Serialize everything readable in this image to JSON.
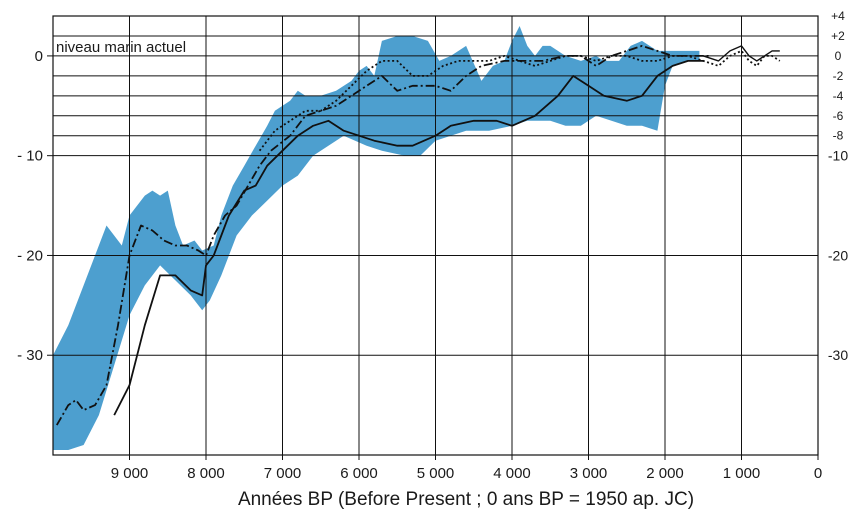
{
  "chart_data": {
    "type": "area",
    "xlabel": "Années BP (Before Present ; 0 ans BP = 1950 ap. JC)",
    "ylabel": "",
    "annotation": "niveau marin actuel",
    "x_reversed": true,
    "xlim": [
      10000,
      0
    ],
    "ylim": [
      -40,
      4
    ],
    "grid": true,
    "x_ticks": [
      {
        "value": 9000,
        "label": "9 000"
      },
      {
        "value": 8000,
        "label": "8 000"
      },
      {
        "value": 7000,
        "label": "7 000"
      },
      {
        "value": 6000,
        "label": "6 000"
      },
      {
        "value": 5000,
        "label": "5 000"
      },
      {
        "value": 4000,
        "label": "4 000"
      },
      {
        "value": 3000,
        "label": "3 000"
      },
      {
        "value": 2000,
        "label": "2 000"
      },
      {
        "value": 1000,
        "label": "1 000"
      },
      {
        "value": 0,
        "label": "0"
      }
    ],
    "y_ticks_left": [
      {
        "value": 0,
        "label": "0"
      },
      {
        "value": -10,
        "label": "- 10"
      },
      {
        "value": -20,
        "label": "- 20"
      },
      {
        "value": -30,
        "label": "- 30"
      }
    ],
    "y_ticks_right": [
      {
        "value": 4,
        "label": "+4"
      },
      {
        "value": 2,
        "label": "+2"
      },
      {
        "value": 0,
        "label": "0"
      },
      {
        "value": -2,
        "label": "-2"
      },
      {
        "value": -4,
        "label": "-4"
      },
      {
        "value": -6,
        "label": "-6"
      },
      {
        "value": -8,
        "label": "-8"
      },
      {
        "value": -10,
        "label": "-10"
      },
      {
        "value": -20,
        "label": "-20"
      },
      {
        "value": -30,
        "label": "-30"
      }
    ],
    "colors": {
      "band": "#4d9fcf",
      "line": "#111111"
    },
    "band": {
      "upper": [
        [
          10000,
          -30
        ],
        [
          9800,
          -27
        ],
        [
          9600,
          -23
        ],
        [
          9300,
          -17
        ],
        [
          9100,
          -19
        ],
        [
          9000,
          -16
        ],
        [
          8800,
          -14
        ],
        [
          8700,
          -13.5
        ],
        [
          8600,
          -14
        ],
        [
          8500,
          -13.5
        ],
        [
          8400,
          -17
        ],
        [
          8300,
          -19
        ],
        [
          8150,
          -18.5
        ],
        [
          8050,
          -19.5
        ],
        [
          7900,
          -19
        ],
        [
          7800,
          -16
        ],
        [
          7650,
          -13
        ],
        [
          7500,
          -11
        ],
        [
          7350,
          -9
        ],
        [
          7200,
          -7
        ],
        [
          7100,
          -5.5
        ],
        [
          7000,
          -5
        ],
        [
          6900,
          -4.5
        ],
        [
          6800,
          -3.5
        ],
        [
          6700,
          -4
        ],
        [
          6500,
          -4
        ],
        [
          6300,
          -3.5
        ],
        [
          6100,
          -2.5
        ],
        [
          6000,
          -1.5
        ],
        [
          5900,
          -1
        ],
        [
          5800,
          -2
        ],
        [
          5700,
          1.5
        ],
        [
          5500,
          2
        ],
        [
          5300,
          2
        ],
        [
          5100,
          1.5
        ],
        [
          4950,
          -0.5
        ],
        [
          4800,
          0
        ],
        [
          4600,
          1
        ],
        [
          4400,
          -2.5
        ],
        [
          4250,
          -1
        ],
        [
          4100,
          -0.5
        ],
        [
          4000,
          1.5
        ],
        [
          3900,
          3
        ],
        [
          3800,
          1
        ],
        [
          3700,
          0
        ],
        [
          3600,
          1
        ],
        [
          3500,
          1
        ],
        [
          3300,
          0
        ],
        [
          3100,
          -0.5
        ],
        [
          2900,
          0
        ],
        [
          2800,
          -0.5
        ],
        [
          2600,
          -0.5
        ],
        [
          2450,
          1
        ],
        [
          2300,
          1.5
        ],
        [
          2200,
          1
        ],
        [
          2100,
          0.5
        ],
        [
          2000,
          0.5
        ],
        [
          1900,
          0.5
        ],
        [
          1700,
          0.5
        ],
        [
          1550,
          0.5
        ]
      ],
      "lower": [
        [
          1550,
          -0.5
        ],
        [
          1700,
          -0.5
        ],
        [
          1900,
          -1
        ],
        [
          2000,
          -3
        ],
        [
          2100,
          -7.5
        ],
        [
          2300,
          -7
        ],
        [
          2500,
          -7
        ],
        [
          2700,
          -6.5
        ],
        [
          2900,
          -6
        ],
        [
          3100,
          -7
        ],
        [
          3300,
          -7
        ],
        [
          3500,
          -6.5
        ],
        [
          3800,
          -6.5
        ],
        [
          4000,
          -7
        ],
        [
          4300,
          -7.5
        ],
        [
          4600,
          -7.5
        ],
        [
          5000,
          -8.5
        ],
        [
          5200,
          -10
        ],
        [
          5400,
          -10
        ],
        [
          5700,
          -9.5
        ],
        [
          5900,
          -9
        ],
        [
          6200,
          -8
        ],
        [
          6400,
          -9
        ],
        [
          6600,
          -10
        ],
        [
          6800,
          -12
        ],
        [
          7000,
          -13
        ],
        [
          7200,
          -14.5
        ],
        [
          7400,
          -16
        ],
        [
          7600,
          -18
        ],
        [
          7800,
          -22
        ],
        [
          7950,
          -24.5
        ],
        [
          8050,
          -25.5
        ],
        [
          8200,
          -24
        ],
        [
          8400,
          -22.5
        ],
        [
          8600,
          -21
        ],
        [
          8800,
          -23
        ],
        [
          9000,
          -26
        ],
        [
          9200,
          -31
        ],
        [
          9400,
          -36
        ],
        [
          9600,
          -39
        ],
        [
          9800,
          -39.5
        ],
        [
          10000,
          -39.5
        ]
      ]
    },
    "series": [
      {
        "style": "solid",
        "points": [
          [
            9200,
            -36
          ],
          [
            9000,
            -33
          ],
          [
            8800,
            -27
          ],
          [
            8600,
            -22
          ],
          [
            8400,
            -22
          ],
          [
            8200,
            -23.5
          ],
          [
            8050,
            -24
          ],
          [
            8000,
            -21
          ],
          [
            7900,
            -20
          ],
          [
            7800,
            -18
          ],
          [
            7700,
            -16
          ],
          [
            7500,
            -13.5
          ],
          [
            7350,
            -13
          ],
          [
            7200,
            -11
          ],
          [
            7000,
            -9.5
          ],
          [
            6800,
            -8
          ],
          [
            6600,
            -7
          ],
          [
            6400,
            -6.5
          ],
          [
            6200,
            -7.5
          ],
          [
            6000,
            -8
          ],
          [
            5800,
            -8.5
          ],
          [
            5500,
            -9
          ],
          [
            5300,
            -9
          ],
          [
            5000,
            -8
          ],
          [
            4800,
            -7
          ],
          [
            4500,
            -6.5
          ],
          [
            4200,
            -6.5
          ],
          [
            4000,
            -7
          ],
          [
            3700,
            -6
          ],
          [
            3400,
            -4
          ],
          [
            3200,
            -2
          ],
          [
            3000,
            -3
          ],
          [
            2800,
            -4
          ],
          [
            2500,
            -4.5
          ],
          [
            2300,
            -4
          ],
          [
            2100,
            -2
          ],
          [
            1900,
            -1
          ],
          [
            1700,
            -0.5
          ],
          [
            1500,
            -0.5
          ]
        ]
      },
      {
        "style": "dashed",
        "points": [
          [
            9950,
            -37
          ],
          [
            9800,
            -35
          ],
          [
            9700,
            -34.5
          ],
          [
            9600,
            -35.5
          ],
          [
            9450,
            -35
          ],
          [
            9300,
            -33
          ],
          [
            9150,
            -27
          ],
          [
            9000,
            -20
          ],
          [
            8850,
            -17
          ],
          [
            8700,
            -17.5
          ],
          [
            8550,
            -18.5
          ],
          [
            8400,
            -19
          ],
          [
            8250,
            -19
          ],
          [
            8100,
            -19.5
          ],
          [
            8000,
            -20
          ],
          [
            7900,
            -18
          ],
          [
            7750,
            -16
          ],
          [
            7600,
            -15
          ],
          [
            7450,
            -13
          ],
          [
            7300,
            -11
          ],
          [
            7150,
            -9.5
          ],
          [
            6900,
            -8
          ],
          [
            6700,
            -6
          ],
          [
            6500,
            -5.5
          ],
          [
            6300,
            -5
          ],
          [
            6100,
            -4
          ],
          [
            5900,
            -3
          ],
          [
            5700,
            -2
          ],
          [
            5500,
            -3.5
          ],
          [
            5300,
            -3
          ],
          [
            5000,
            -3
          ],
          [
            4800,
            -3.5
          ],
          [
            4600,
            -2
          ],
          [
            4400,
            -1
          ],
          [
            4100,
            -0.5
          ],
          [
            3900,
            -0.5
          ],
          [
            3600,
            -0.5
          ],
          [
            3300,
            0
          ],
          [
            3100,
            0
          ],
          [
            2900,
            -1
          ],
          [
            2700,
            0
          ],
          [
            2500,
            0.5
          ],
          [
            2300,
            1
          ],
          [
            2100,
            0.5
          ],
          [
            1900,
            0
          ],
          [
            1600,
            0
          ],
          [
            1400,
            0
          ]
        ]
      },
      {
        "style": "dotted",
        "points": [
          [
            7300,
            -9.5
          ],
          [
            7100,
            -7.5
          ],
          [
            6900,
            -6.5
          ],
          [
            6700,
            -5.5
          ],
          [
            6500,
            -5.5
          ],
          [
            6300,
            -4.5
          ],
          [
            6100,
            -3
          ],
          [
            5900,
            -1.5
          ],
          [
            5700,
            -0.5
          ],
          [
            5500,
            -0.5
          ],
          [
            5300,
            -2
          ],
          [
            5100,
            -2
          ],
          [
            4900,
            -1
          ],
          [
            4700,
            -0.5
          ],
          [
            4500,
            -0.5
          ],
          [
            4300,
            -0.5
          ],
          [
            4100,
            0
          ],
          [
            3900,
            -0.5
          ],
          [
            3700,
            -1
          ],
          [
            3500,
            -0.5
          ],
          [
            3300,
            0
          ],
          [
            3100,
            0
          ],
          [
            2900,
            -0.5
          ],
          [
            2700,
            0
          ],
          [
            2500,
            0
          ],
          [
            2300,
            -0.5
          ],
          [
            2100,
            -0.5
          ],
          [
            1900,
            0
          ],
          [
            1700,
            0
          ],
          [
            1500,
            -0.5
          ],
          [
            1300,
            -1
          ],
          [
            1150,
            0
          ],
          [
            1000,
            0.5
          ],
          [
            900,
            -0.5
          ],
          [
            800,
            -1
          ],
          [
            700,
            0
          ],
          [
            600,
            0
          ],
          [
            500,
            -0.5
          ]
        ]
      },
      {
        "style": "solid-thin",
        "points": [
          [
            1500,
            0
          ],
          [
            1300,
            -0.5
          ],
          [
            1150,
            0.5
          ],
          [
            1000,
            1
          ],
          [
            900,
            0
          ],
          [
            800,
            -0.5
          ],
          [
            700,
            0
          ],
          [
            600,
            0.5
          ],
          [
            500,
            0.5
          ]
        ]
      }
    ]
  }
}
